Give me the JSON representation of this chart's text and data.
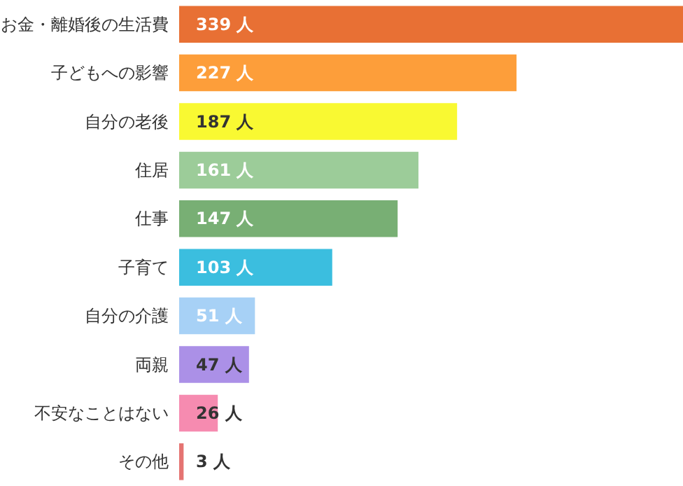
{
  "chart_data": {
    "type": "bar",
    "orientation": "horizontal",
    "categories": [
      "お金・離婚後の生活費",
      "子どもへの影響",
      "自分の老後",
      "住居",
      "仕事",
      "子育て",
      "自分の介護",
      "両親",
      "不安なことはない",
      "その他"
    ],
    "values": [
      339,
      227,
      187,
      161,
      147,
      103,
      51,
      47,
      26,
      3
    ],
    "value_labels": [
      "339 人",
      "227 人",
      "187 人",
      "161 人",
      "147 人",
      "103 人",
      "51 人",
      "47 人",
      "26 人",
      "3 人"
    ],
    "colors": [
      "#e87034",
      "#fd9e3a",
      "#f9f932",
      "#9ccc99",
      "#78af74",
      "#3bbedf",
      "#a7d1f6",
      "#ab90e7",
      "#f68bb0",
      "#e57472"
    ]
  }
}
